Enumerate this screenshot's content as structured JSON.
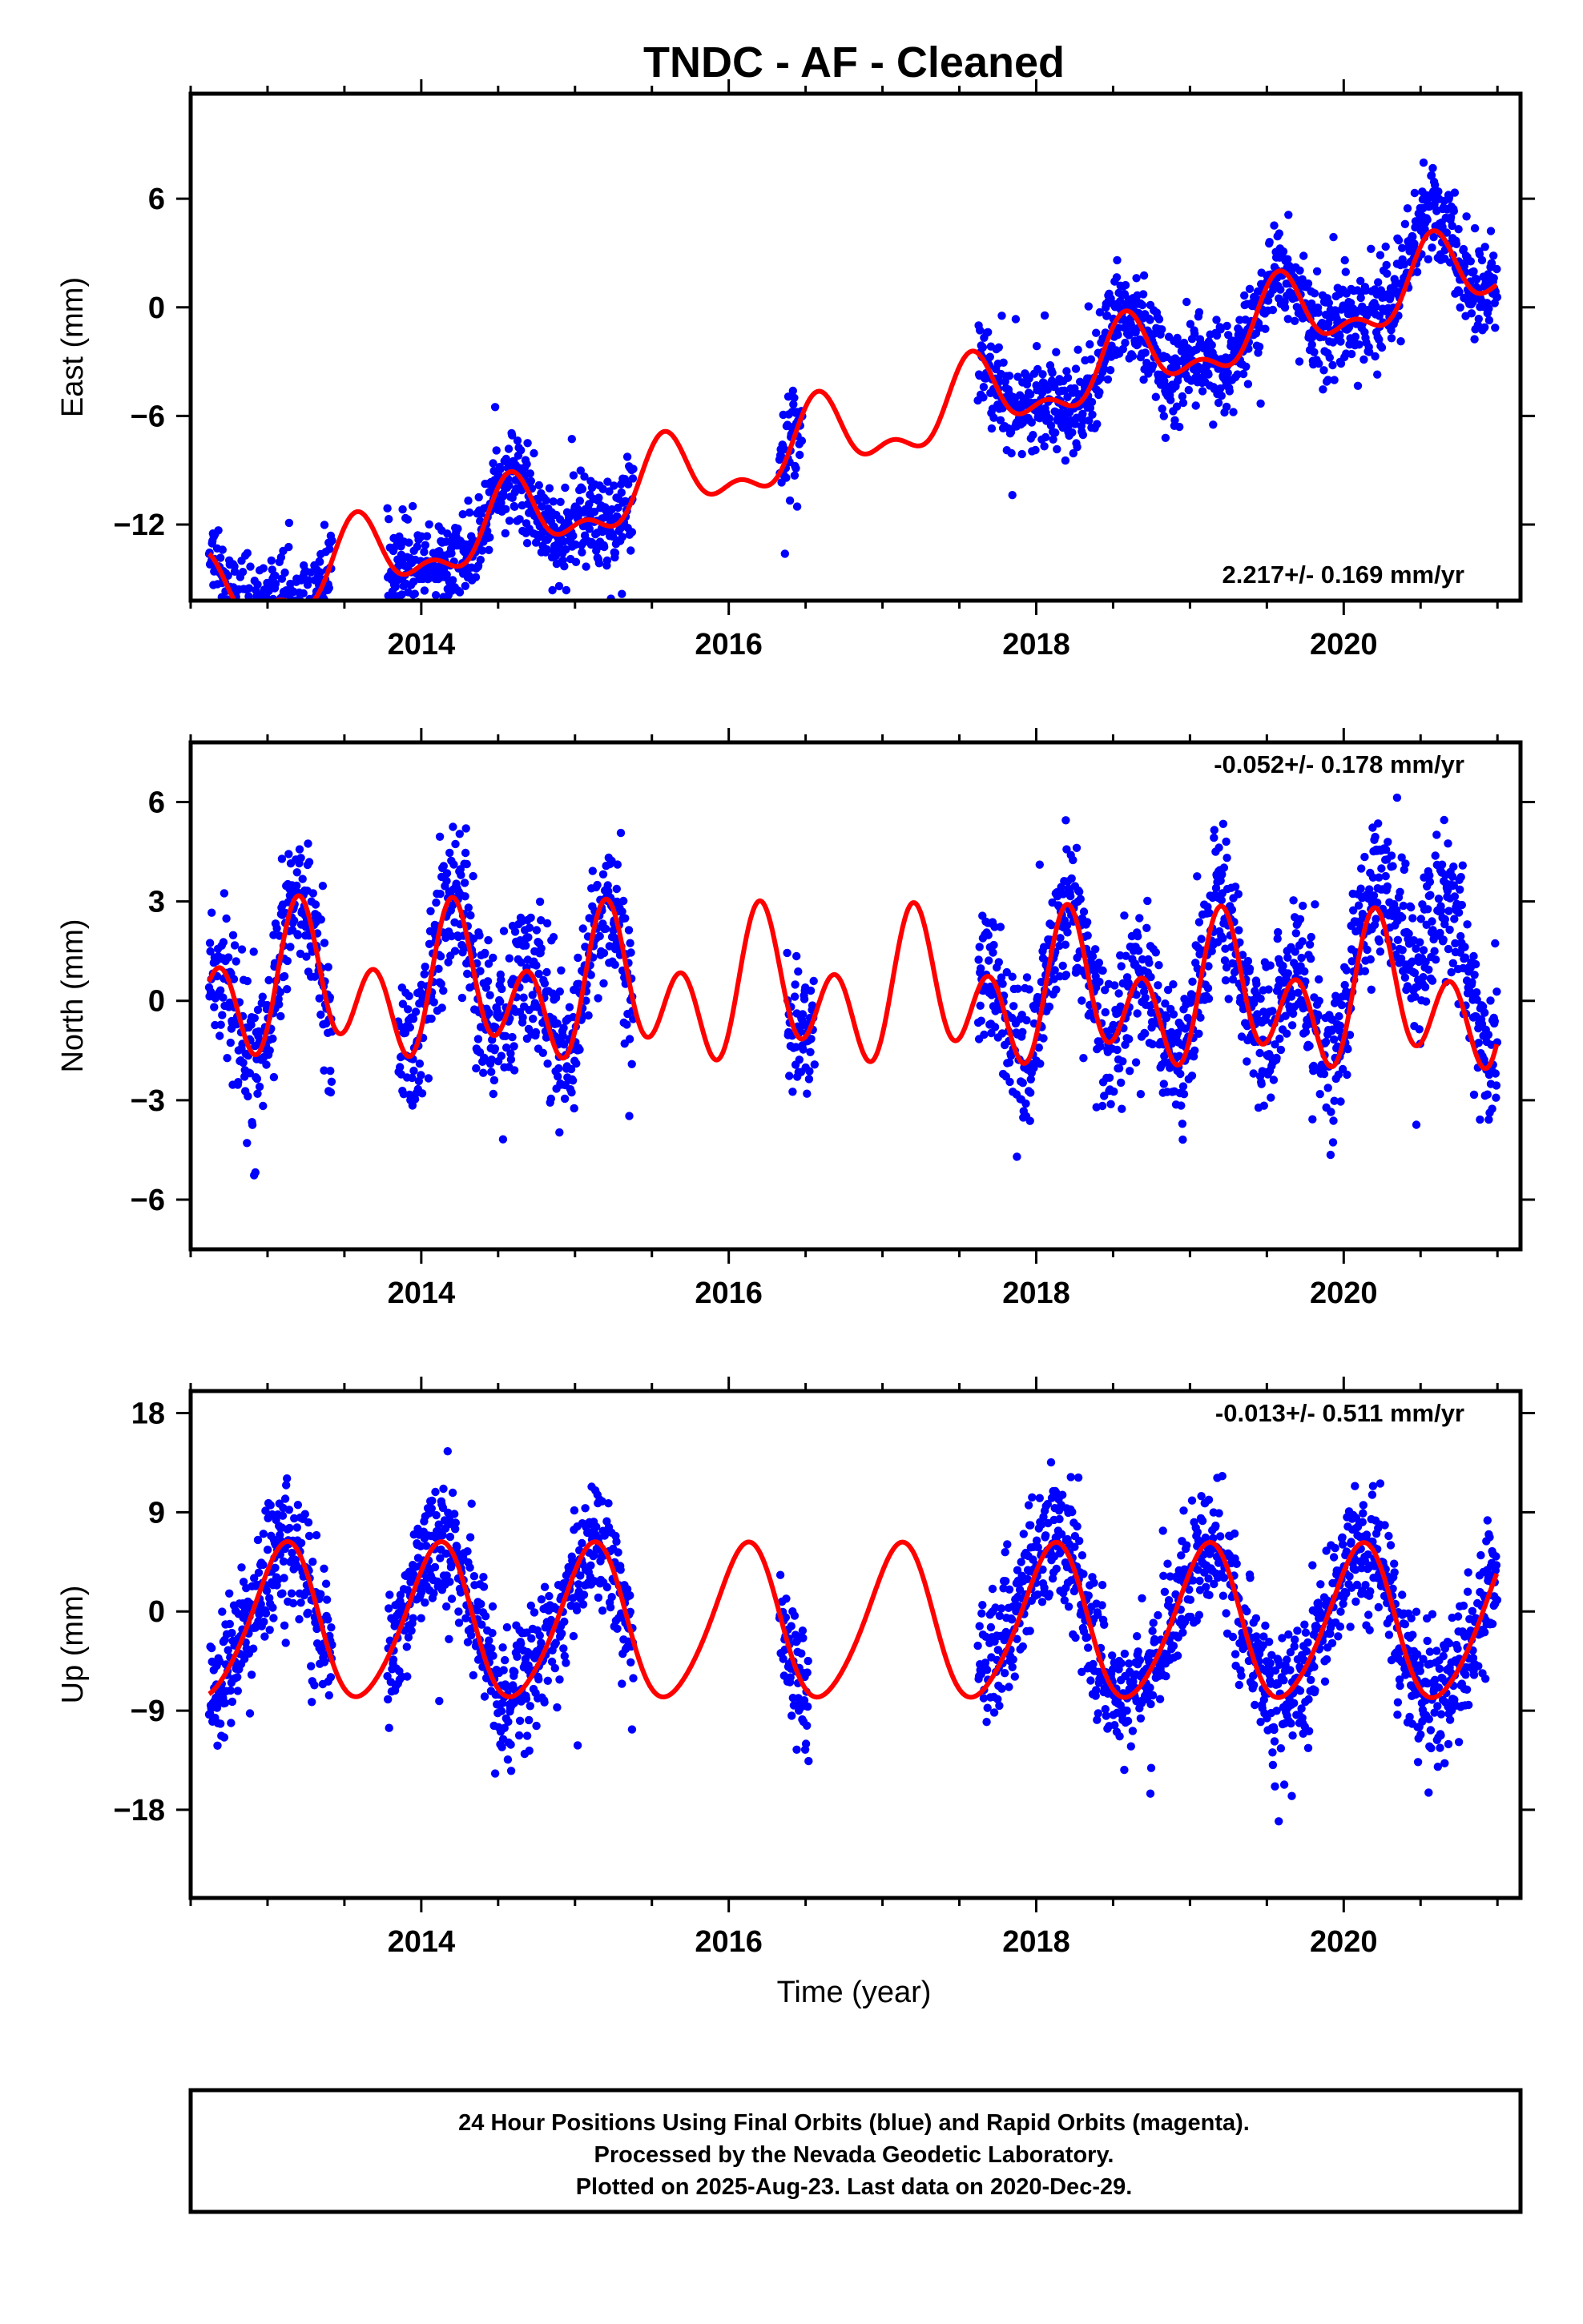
{
  "page": {
    "title": "TNDC  - AF - Cleaned",
    "xlabel": "Time (year)"
  },
  "footer": {
    "lines": [
      "24 Hour Positions Using Final Orbits (blue) and Rapid Orbits (magenta).",
      "Processed by the Nevada Geodetic Laboratory.",
      "Plotted on 2025-Aug-23. Last data on 2020-Dec-29."
    ]
  },
  "colors": {
    "points": "#0000ff",
    "model": "#ff0000",
    "frame": "#000000",
    "background": "#ffffff"
  },
  "chart_data": [
    {
      "type": "scatter",
      "title": "TNDC  - AF - Cleaned",
      "ylabel": "East (mm)",
      "xlabel": "",
      "xlim": [
        2012.5,
        2021.15
      ],
      "ylim": [
        -16.2,
        11.8
      ],
      "yticks": [
        -12,
        -6,
        0,
        6
      ],
      "xticks": [
        2014,
        2016,
        2018,
        2020
      ],
      "rate_label": "2.217+/- 0.169 mm/yr",
      "rate_position": "bottom-right",
      "model": {
        "name": "model",
        "trend_slope": 2.217,
        "offset": -7.7,
        "annual_cos": -1.6,
        "annual_sin": -1.0,
        "semiannual_cos": 0.6,
        "semiannual_sin": 0.8
      },
      "data_segments": [
        [
          2012.62,
          2013.42
        ],
        [
          2013.78,
          2015.38
        ],
        [
          2016.33,
          2016.48
        ],
        [
          2017.62,
          2021.0
        ]
      ],
      "scatter_sd": 1.3,
      "anomaly": {
        "center": 2020.5,
        "width": 0.35,
        "amount": 1.0
      }
    },
    {
      "type": "scatter",
      "ylabel": "North (mm)",
      "xlabel": "",
      "xlim": [
        2012.5,
        2021.15
      ],
      "ylim": [
        -7.5,
        7.8
      ],
      "yticks": [
        -6,
        -3,
        0,
        3,
        6
      ],
      "xticks": [
        2014,
        2016,
        2018,
        2020
      ],
      "rate_label": "-0.052+/- 0.178 mm/yr",
      "rate_position": "top-right",
      "model": {
        "name": "model",
        "trend_slope": -0.052,
        "offset": 0.25,
        "annual_cos": 0.05,
        "annual_sin": 1.15,
        "semiannual_cos": -1.28,
        "semiannual_sin": 1.03
      },
      "data_segments": [
        [
          2012.62,
          2013.42
        ],
        [
          2013.85,
          2015.38
        ],
        [
          2016.38,
          2016.56
        ],
        [
          2017.62,
          2021.0
        ]
      ],
      "scatter_sd": 1.1,
      "anomaly": {
        "center": 2020.55,
        "width": 0.3,
        "amount": 3.0
      }
    },
    {
      "type": "scatter",
      "ylabel": "Up (mm)",
      "xlabel": "Time (year)",
      "xlim": [
        2012.5,
        2021.15
      ],
      "ylim": [
        -26.0,
        20.0
      ],
      "yticks": [
        -18,
        -9,
        0,
        9,
        18
      ],
      "xticks": [
        2014,
        2016,
        2018,
        2020
      ],
      "rate_label": "-0.013+/- 0.511 mm/yr",
      "rate_position": "top-right",
      "model": {
        "name": "model",
        "trend_slope": -0.013,
        "offset": -1.2,
        "annual_cos": 5.35,
        "annual_sin": 4.4,
        "semiannual_cos": -0.5,
        "semiannual_sin": 0.6
      },
      "data_segments": [
        [
          2012.62,
          2013.42
        ],
        [
          2013.78,
          2015.38
        ],
        [
          2016.33,
          2016.52
        ],
        [
          2017.62,
          2021.0
        ]
      ],
      "scatter_sd": 3.0,
      "anomaly": {
        "center": 2017.8,
        "width": 0.2,
        "amount": 2.5
      }
    }
  ]
}
